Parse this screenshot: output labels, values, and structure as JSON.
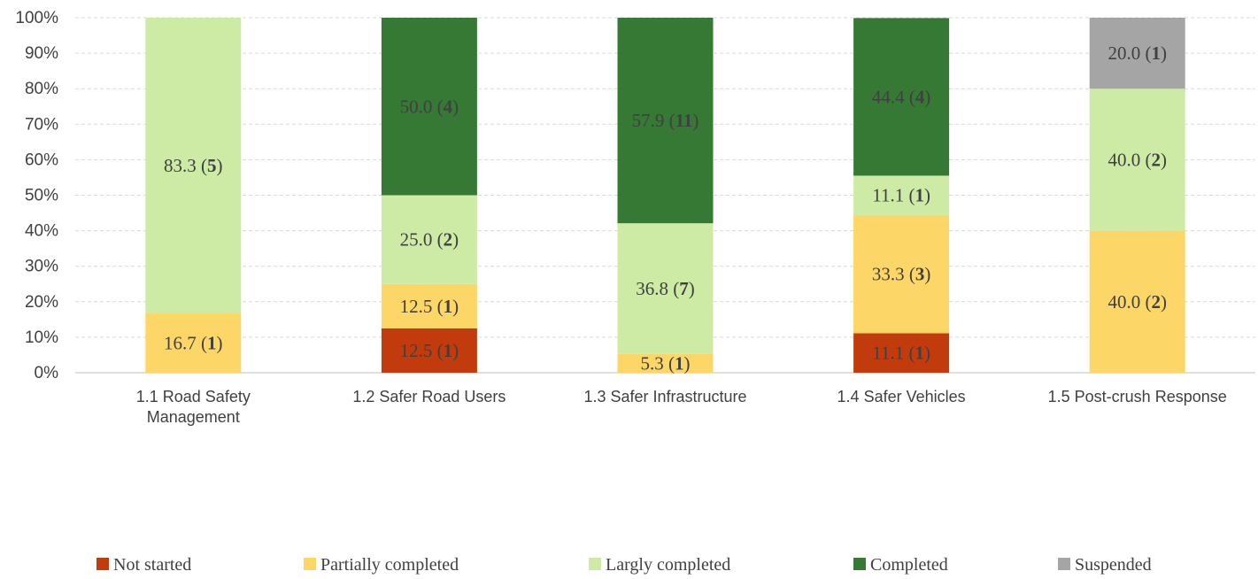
{
  "chart_data": {
    "type": "bar",
    "stacked": true,
    "percent_stacked": true,
    "categories": [
      [
        "1.1 Road Safety",
        "Management"
      ],
      [
        "1.2 Safer Road Users"
      ],
      [
        "1.3 Safer Infrastructure"
      ],
      [
        "1.4 Safer Vehicles"
      ],
      [
        "1.5  Post-crush Response"
      ]
    ],
    "series": [
      {
        "name": "Not started",
        "color": "#C23B0C",
        "values": [
          0,
          12.5,
          0,
          11.1,
          0
        ],
        "labels": [
          null,
          {
            "pct": "12.5",
            "count": "1"
          },
          null,
          {
            "pct": "11.1",
            "count": "1"
          },
          null
        ]
      },
      {
        "name": "Partially completed",
        "color": "#FDD668",
        "values": [
          16.7,
          12.5,
          5.3,
          33.3,
          40.0
        ],
        "labels": [
          {
            "pct": "16.7",
            "count": "1"
          },
          {
            "pct": "12.5",
            "count": "1"
          },
          {
            "pct": "5.3",
            "count": "1"
          },
          {
            "pct": "33.3",
            "count": "3"
          },
          {
            "pct": "40.0",
            "count": "2"
          }
        ]
      },
      {
        "name": "Largly completed",
        "color": "#CDEBA5",
        "values": [
          83.3,
          25.0,
          36.8,
          11.1,
          40.0
        ],
        "labels": [
          {
            "pct": "83.3",
            "count": "5"
          },
          {
            "pct": "25.0",
            "count": "2"
          },
          {
            "pct": "36.8",
            "count": "7"
          },
          {
            "pct": "11.1",
            "count": "1"
          },
          {
            "pct": "40.0",
            "count": "2"
          }
        ]
      },
      {
        "name": "Completed",
        "color": "#367935",
        "values": [
          0,
          50.0,
          57.9,
          44.4,
          0
        ],
        "labels": [
          null,
          {
            "pct": "50.0",
            "count": "4"
          },
          {
            "pct": "57.9",
            "count": "11"
          },
          {
            "pct": "44.4",
            "count": "4"
          },
          null
        ]
      },
      {
        "name": "Suspended",
        "color": "#A5A5A5",
        "values": [
          0,
          0,
          0,
          0,
          20.0
        ],
        "labels": [
          null,
          null,
          null,
          null,
          {
            "pct": "20.0",
            "count": "1"
          }
        ]
      }
    ],
    "ylim": [
      0,
      100
    ],
    "yticks": [
      "0%",
      "10%",
      "20%",
      "30%",
      "40%",
      "50%",
      "60%",
      "70%",
      "80%",
      "90%",
      "100%"
    ],
    "grid": true,
    "legend_position": "bottom",
    "title": "",
    "xlabel": "",
    "ylabel": ""
  }
}
